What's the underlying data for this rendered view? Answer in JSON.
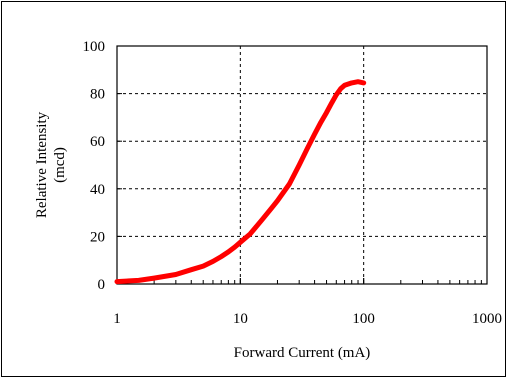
{
  "chart_data": {
    "type": "line",
    "title": "",
    "xlabel": "Forward Current (mA)",
    "ylabel": "Relative Intensity",
    "ylabel_unit": "(mcd)",
    "x_scale": "log",
    "xlim": [
      1,
      1000
    ],
    "ylim": [
      0,
      100
    ],
    "x_ticks": [
      "1",
      "10",
      "100",
      "1000"
    ],
    "y_ticks": [
      "0",
      "20",
      "40",
      "60",
      "80",
      "100"
    ],
    "grid": true,
    "legend": "none",
    "series": [
      {
        "color": "#ff0000",
        "x": [
          1,
          1.5,
          2,
          3,
          4,
          5,
          6,
          7,
          8,
          9,
          10,
          12,
          15,
          18,
          20,
          25,
          30,
          35,
          40,
          45,
          50,
          55,
          60,
          65,
          70,
          80,
          90,
          100
        ],
        "y": [
          1,
          1.5,
          2.5,
          4,
          6,
          7.5,
          9.5,
          11.5,
          13.5,
          15.5,
          17.5,
          21,
          27,
          32,
          35,
          42,
          50,
          57,
          63,
          68,
          72,
          76,
          79.5,
          82,
          83.5,
          84.5,
          85,
          84.5
        ]
      }
    ]
  }
}
